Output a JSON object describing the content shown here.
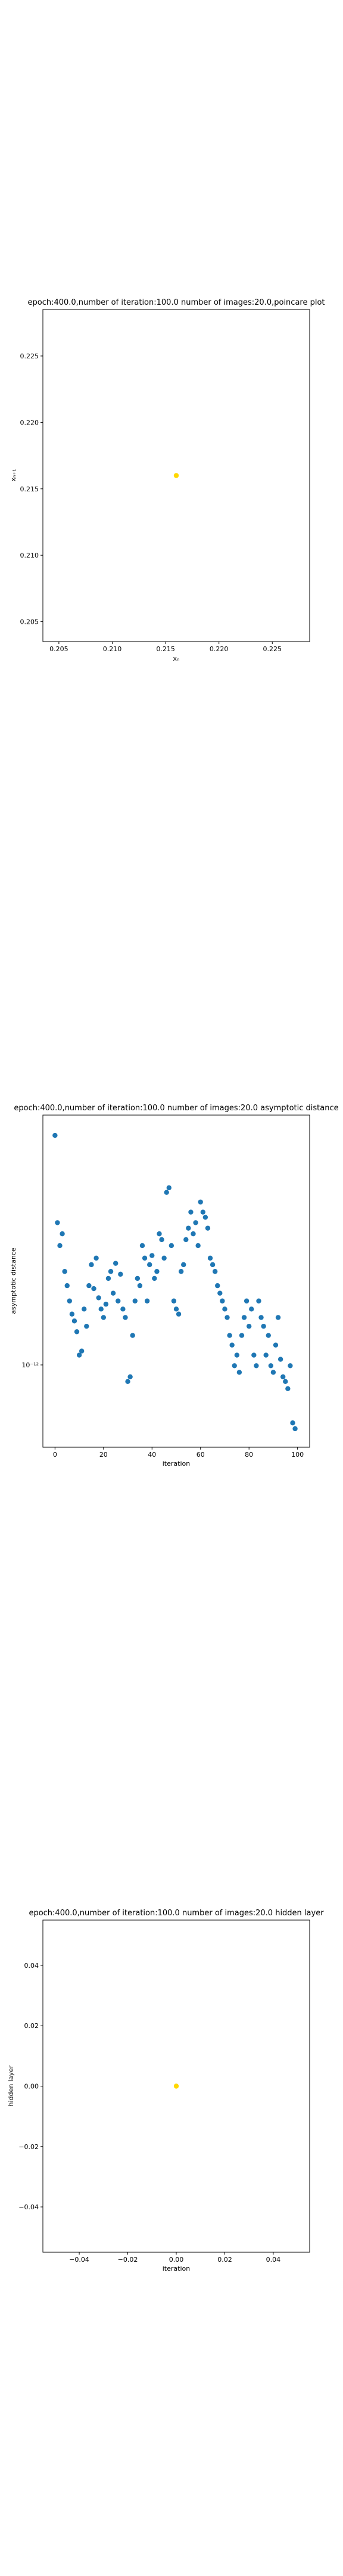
{
  "chart_data": [
    {
      "type": "scatter",
      "title": "epoch:400.0,number of iteration:100.0 number of images:20.0,poincare plot",
      "xlabel": "xₙ",
      "ylabel": "xₙ₊₁",
      "xlim": [
        0.2035,
        0.2285
      ],
      "ylim": [
        0.2035,
        0.2285
      ],
      "xticks": [
        0.205,
        0.21,
        0.215,
        0.22,
        0.225
      ],
      "yticks": [
        0.205,
        0.21,
        0.215,
        0.22,
        0.225
      ],
      "xtick_labels": [
        "0.205",
        "0.210",
        "0.215",
        "0.220",
        "0.225"
      ],
      "ytick_labels": [
        "0.205",
        "0.210",
        "0.215",
        "0.220",
        "0.225"
      ],
      "grid": false,
      "point_color": "#ffd700",
      "points": [
        {
          "x": 0.216,
          "y": 0.216
        }
      ]
    },
    {
      "type": "scatter",
      "title": "epoch:400.0,number of iteration:100.0  number of images:20.0 asymptotic distance",
      "xlabel": "iteration",
      "ylabel": "asymptotic distance",
      "yscale": "log",
      "xlim": [
        -5,
        105
      ],
      "xticks": [
        0,
        20,
        40,
        60,
        80,
        100
      ],
      "xtick_labels": [
        "0",
        "20",
        "40",
        "60",
        "80",
        "100"
      ],
      "ytick_labels": [
        "10⁻¹²"
      ],
      "grid": false,
      "point_color": "#1f77b4",
      "x": [
        0,
        1,
        2,
        3,
        4,
        5,
        6,
        7,
        8,
        9,
        10,
        11,
        12,
        13,
        14,
        15,
        16,
        17,
        18,
        19,
        20,
        21,
        22,
        23,
        24,
        25,
        26,
        27,
        28,
        29,
        30,
        31,
        32,
        33,
        34,
        35,
        36,
        37,
        38,
        39,
        40,
        41,
        42,
        43,
        44,
        45,
        46,
        47,
        48,
        49,
        50,
        51,
        52,
        53,
        54,
        55,
        56,
        57,
        58,
        59,
        60,
        61,
        62,
        63,
        64,
        65,
        66,
        67,
        68,
        69,
        70,
        71,
        72,
        73,
        74,
        75,
        76,
        77,
        78,
        79,
        80,
        81,
        82,
        83,
        84,
        85,
        86,
        87,
        88,
        89,
        90,
        91,
        92,
        93,
        94,
        95,
        96,
        97,
        98,
        99
      ],
      "y": [
        2.9,
        1.9,
        1.7,
        1.8,
        1.5,
        1.4,
        1.3,
        1.22,
        1.18,
        1.12,
        1.0,
        1.02,
        1.25,
        1.15,
        1.4,
        1.55,
        1.38,
        1.6,
        1.32,
        1.25,
        1.2,
        1.28,
        1.45,
        1.5,
        1.35,
        1.56,
        1.3,
        1.48,
        1.25,
        1.2,
        0.88,
        0.9,
        1.1,
        1.3,
        1.45,
        1.4,
        1.7,
        1.6,
        1.3,
        1.55,
        1.62,
        1.45,
        1.5,
        1.8,
        1.75,
        1.6,
        2.2,
        2.25,
        1.7,
        1.3,
        1.25,
        1.22,
        1.5,
        1.55,
        1.75,
        1.85,
        2.0,
        1.8,
        1.9,
        1.7,
        2.1,
        2.0,
        1.95,
        1.85,
        1.6,
        1.55,
        1.5,
        1.4,
        1.35,
        1.3,
        1.25,
        1.2,
        1.1,
        1.05,
        0.95,
        1.0,
        0.92,
        1.1,
        1.2,
        1.3,
        1.15,
        1.25,
        1.0,
        0.95,
        1.3,
        1.2,
        1.15,
        1.0,
        1.1,
        0.95,
        0.92,
        1.05,
        1.2,
        0.98,
        0.9,
        0.88,
        0.85,
        0.95,
        0.72,
        0.7
      ]
    },
    {
      "type": "scatter",
      "title": "epoch:400.0,number of iteration:100.0  number of images:20.0 hidden layer",
      "xlabel": "iteration",
      "ylabel": "hidden layer",
      "xlim": [
        -0.055,
        0.055
      ],
      "ylim": [
        -0.055,
        0.055
      ],
      "xticks": [
        -0.04,
        -0.02,
        0.0,
        0.02,
        0.04
      ],
      "yticks": [
        -0.04,
        -0.02,
        0.0,
        0.02,
        0.04
      ],
      "xtick_labels": [
        "−0.04",
        "−0.02",
        "0.00",
        "0.02",
        "0.04"
      ],
      "ytick_labels": [
        "−0.04",
        "−0.02",
        "0.00",
        "0.02",
        "0.04"
      ],
      "grid": false,
      "point_color": "#ffd700",
      "points": [
        {
          "x": 0.0,
          "y": 0.0
        }
      ]
    }
  ]
}
